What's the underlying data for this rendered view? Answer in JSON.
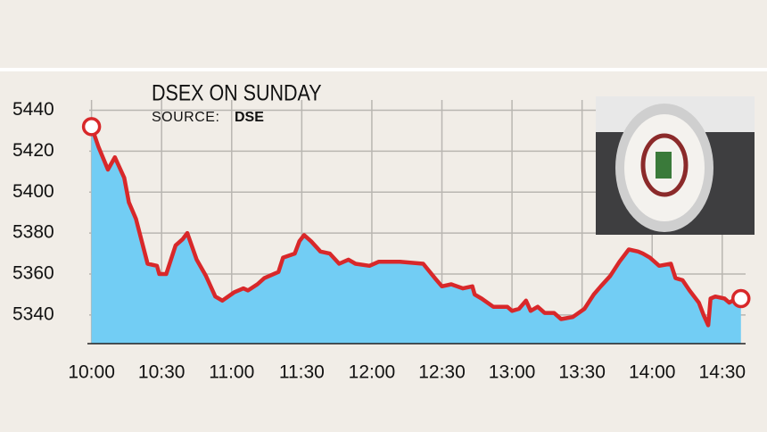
{
  "chart_data": {
    "type": "area",
    "title": "DSEX ON SUNDAY",
    "source_label": "SOURCE:",
    "source": "DSE",
    "line_color": "#d8282a",
    "fill_color": "#72cdf4",
    "grid": true,
    "x": [
      600,
      603,
      607,
      610,
      614,
      616,
      619,
      624,
      628,
      629,
      632,
      636,
      639,
      641,
      645,
      649,
      653,
      656,
      661,
      665,
      667,
      671,
      674,
      680,
      682,
      687,
      689,
      691,
      694,
      698,
      702,
      706,
      710,
      713,
      719,
      723,
      732,
      742,
      747,
      750,
      754,
      759,
      763,
      764,
      767,
      772,
      778,
      780,
      783,
      786,
      788,
      791,
      794,
      798,
      801,
      806,
      811,
      815,
      818,
      822,
      826,
      830,
      834,
      836,
      839,
      843,
      848,
      850,
      853,
      856,
      860,
      862,
      864,
      865,
      867,
      871,
      873,
      876,
      878
    ],
    "values": [
      5432,
      5422,
      5411,
      5417,
      5407,
      5395,
      5387,
      5365,
      5364,
      5360,
      5360,
      5374,
      5377,
      5380,
      5367,
      5359,
      5349,
      5347,
      5351,
      5353,
      5352,
      5355,
      5358,
      5361,
      5368,
      5370,
      5376,
      5379,
      5376,
      5371,
      5370,
      5365,
      5367,
      5365,
      5364,
      5366,
      5366,
      5365,
      5358,
      5354,
      5355,
      5353,
      5354,
      5350,
      5348,
      5344,
      5344,
      5342,
      5343,
      5347,
      5342,
      5344,
      5341,
      5341,
      5338,
      5339,
      5343,
      5350,
      5354,
      5359,
      5366,
      5372,
      5371,
      5370,
      5368,
      5364,
      5365,
      5358,
      5357,
      5352,
      5346,
      5340,
      5335,
      5348,
      5349,
      5348,
      5346,
      5348,
      5348
    ],
    "xlim": [
      599,
      880
    ],
    "ylim": [
      5326,
      5445
    ],
    "xticks": [
      {
        "value": 600,
        "label": "10:00"
      },
      {
        "value": 630,
        "label": "10:30"
      },
      {
        "value": 660,
        "label": "11:00"
      },
      {
        "value": 690,
        "label": "11:30"
      },
      {
        "value": 720,
        "label": "12:00"
      },
      {
        "value": 750,
        "label": "12:30"
      },
      {
        "value": 780,
        "label": "13:00"
      },
      {
        "value": 810,
        "label": "13:30"
      },
      {
        "value": 840,
        "label": "14:00"
      },
      {
        "value": 870,
        "label": "14:30"
      }
    ],
    "yticks": [
      5340,
      5360,
      5380,
      5400,
      5420,
      5440
    ]
  }
}
